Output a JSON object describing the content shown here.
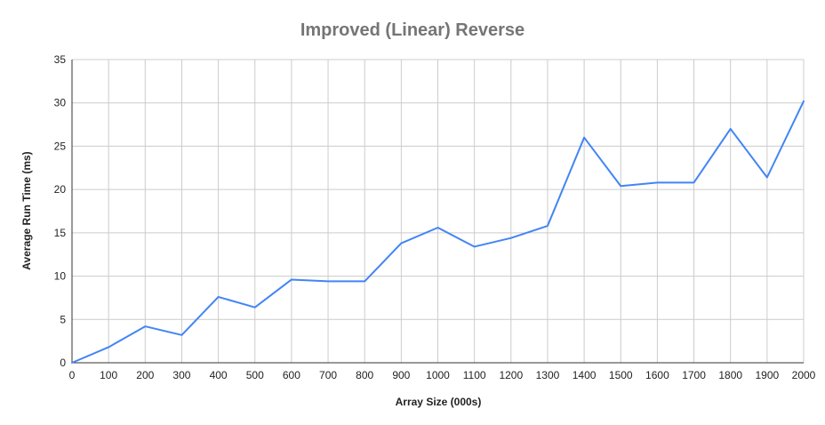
{
  "chart_data": {
    "type": "line",
    "title": "Improved (Linear) Reverse",
    "xlabel": "Array Size (000s)",
    "ylabel": "Average Run Time (ms)",
    "x": [
      0,
      100,
      200,
      300,
      400,
      500,
      600,
      700,
      800,
      900,
      1000,
      1100,
      1200,
      1300,
      1400,
      1500,
      1600,
      1700,
      1800,
      1900,
      2000
    ],
    "xticks": [
      "0",
      "100",
      "200",
      "300",
      "400",
      "500",
      "600",
      "700",
      "800",
      "900",
      "1000",
      "1100",
      "1200",
      "1300",
      "1400",
      "1500",
      "1600",
      "1700",
      "1800",
      "1900",
      "2000"
    ],
    "yticks": [
      "0",
      "5",
      "10",
      "15",
      "20",
      "25",
      "30",
      "35"
    ],
    "ylim": [
      0,
      35
    ],
    "xlim": [
      0,
      2000
    ],
    "grid": true,
    "legend": "none",
    "series": [
      {
        "color": "#4285f4",
        "values": [
          0,
          1.8,
          4.2,
          3.2,
          7.6,
          6.4,
          9.6,
          9.4,
          9.4,
          13.8,
          15.6,
          13.4,
          14.4,
          15.8,
          26.0,
          20.4,
          20.8,
          20.8,
          27.0,
          21.4,
          30.2
        ]
      }
    ]
  }
}
